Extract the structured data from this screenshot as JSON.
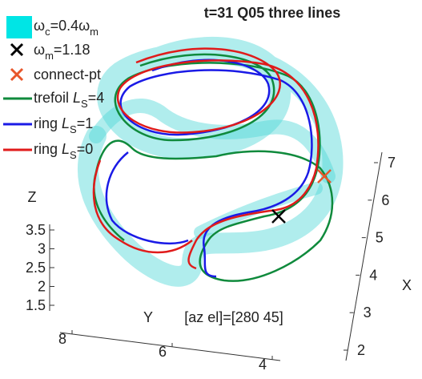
{
  "chart_data": {
    "type": "line3d",
    "title": "t=31  Q05  three lines",
    "annotation": "[az el]=[280 45]",
    "xlabel": "X",
    "ylabel": "Y",
    "zlabel": "Z",
    "zticks": [
      1.5,
      2,
      2.5,
      3,
      3.5
    ],
    "zlim": [
      1.5,
      3.5
    ],
    "yticks": [
      8,
      6,
      4
    ],
    "ylim": [
      8,
      4
    ],
    "xticks": [
      2,
      3,
      4,
      5,
      6,
      7
    ],
    "xlim": [
      2,
      7
    ],
    "legend": [
      {
        "parts": [
          "ω",
          "c",
          "=0.4ω",
          "m"
        ],
        "color": "#00e5e5",
        "marker": "square"
      },
      {
        "parts": [
          "ω",
          "m",
          "=1.18"
        ],
        "color": "#000000",
        "marker": "x"
      },
      {
        "parts": [
          "connect-pt"
        ],
        "color": "#e8562a",
        "marker": "x"
      },
      {
        "parts": [
          "trefoil ",
          "L",
          "S",
          "=4"
        ],
        "color": "#0f8a3c",
        "marker": "line"
      },
      {
        "parts": [
          "ring ",
          "L",
          "S",
          "=1"
        ],
        "color": "#1a1ae6",
        "marker": "line"
      },
      {
        "parts": [
          "ring ",
          "L",
          "S",
          "=0"
        ],
        "color": "#e01b1b",
        "marker": "line"
      }
    ]
  }
}
